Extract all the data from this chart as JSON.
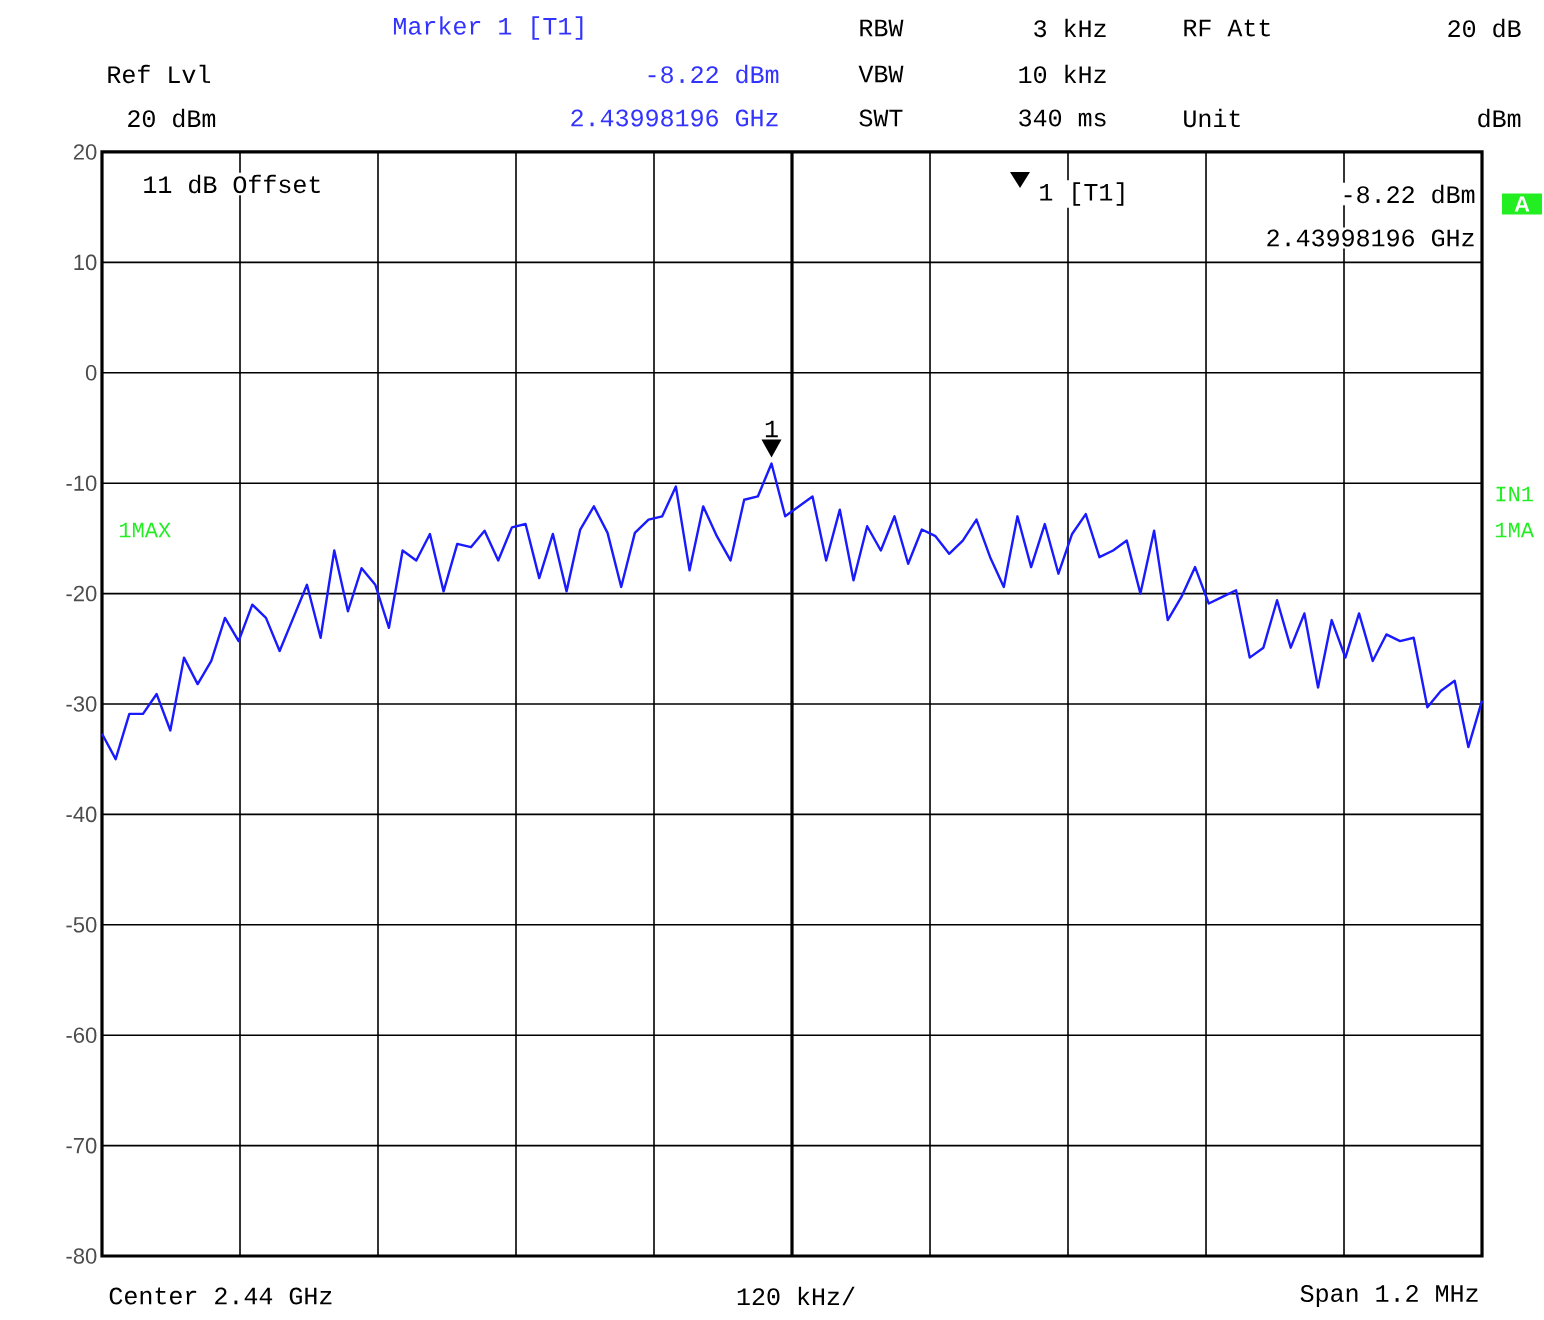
{
  "chart_data": {
    "type": "line",
    "categories": [
      null,
      null,
      null,
      null,
      null,
      null,
      null,
      null,
      null,
      null,
      null,
      null,
      null,
      null,
      null,
      null,
      null,
      null,
      null,
      null,
      null,
      null,
      null,
      null,
      null,
      null,
      null,
      null,
      null,
      null,
      null,
      null,
      null,
      null,
      null,
      null,
      null,
      null,
      null,
      null,
      null,
      null,
      null,
      null,
      null,
      null,
      null,
      null,
      null,
      null,
      null,
      null,
      null,
      null,
      null,
      null,
      null,
      null,
      null,
      null,
      null,
      null,
      null,
      null,
      null,
      null,
      null,
      null,
      null,
      null,
      null,
      null,
      null,
      null,
      null,
      null,
      null,
      null,
      null,
      null,
      null,
      null,
      null,
      null,
      null,
      null,
      null,
      null,
      null,
      null,
      null,
      null,
      null,
      null,
      null,
      null,
      null,
      null,
      null,
      null,
      null,
      null
    ],
    "series": [
      {
        "color": "#1a1aff",
        "values": [
          -32.7,
          -35.0,
          -30.9,
          -30.9,
          -29.1,
          -32.4,
          -25.8,
          -28.2,
          -26.1,
          -22.2,
          -24.3,
          -21.0,
          -22.2,
          -25.2,
          -22.2,
          -19.2,
          -24.0,
          -16.1,
          -21.6,
          -17.7,
          -19.2,
          -23.1,
          -16.1,
          -17.0,
          -14.6,
          -19.8,
          -15.5,
          -15.8,
          -14.3,
          -17.0,
          -14.0,
          -13.7,
          -18.6,
          -14.6,
          -19.8,
          -14.2,
          -12.1,
          -14.5,
          -19.4,
          -14.5,
          -13.3,
          -13.0,
          -10.3,
          -17.9,
          -12.1,
          -14.8,
          -17.0,
          -11.5,
          -11.2,
          -8.22,
          -13.0,
          -12.1,
          -11.2,
          -17.0,
          -12.4,
          -18.8,
          -13.9,
          -16.1,
          -13.0,
          -17.3,
          -14.2,
          -14.8,
          -16.4,
          -15.2,
          -13.3,
          -16.7,
          -19.4,
          -13.0,
          -17.6,
          -13.7,
          -18.2,
          -14.6,
          -12.8,
          -16.7,
          -16.1,
          -15.2,
          -20.0,
          -14.3,
          -22.4,
          -20.3,
          -17.6,
          -20.9,
          -20.3,
          -19.7,
          -25.8,
          -24.9,
          -20.6,
          -24.9,
          -21.8,
          -28.5,
          -22.4,
          -25.8,
          -21.8,
          -26.1,
          -23.7,
          -24.3,
          -24.0,
          -30.3,
          -28.8,
          -27.9,
          -33.9,
          -29.7
        ]
      }
    ],
    "ylim": [
      -80,
      20
    ],
    "yticks": [
      20,
      10,
      0,
      -10,
      -20,
      -30,
      -40,
      -50,
      -60,
      -70,
      -80
    ],
    "tick_labels": "y",
    "grid": true,
    "line_style": "solid",
    "annotations": [
      "Marker 1 [T1]",
      "Ref Lvl",
      "20 dBm",
      "-8.22 dBm",
      "2.43998196 GHz",
      "RBW",
      "3 kHz",
      "VBW",
      "10 kHz",
      "SWT",
      "340 ms",
      "RF Att",
      "20 dB",
      "Unit",
      "dBm",
      "11 dB Offset",
      "1 [T1]",
      "-8.22 dBm",
      "2.43998196 GHz",
      "A",
      "1MAX",
      "IN1",
      "1MA",
      "Center 2.44 GHz",
      "120 kHz/",
      "Span 1.2 MHz",
      {
        "text": "1",
        "y": -8.22
      }
    ]
  }
}
